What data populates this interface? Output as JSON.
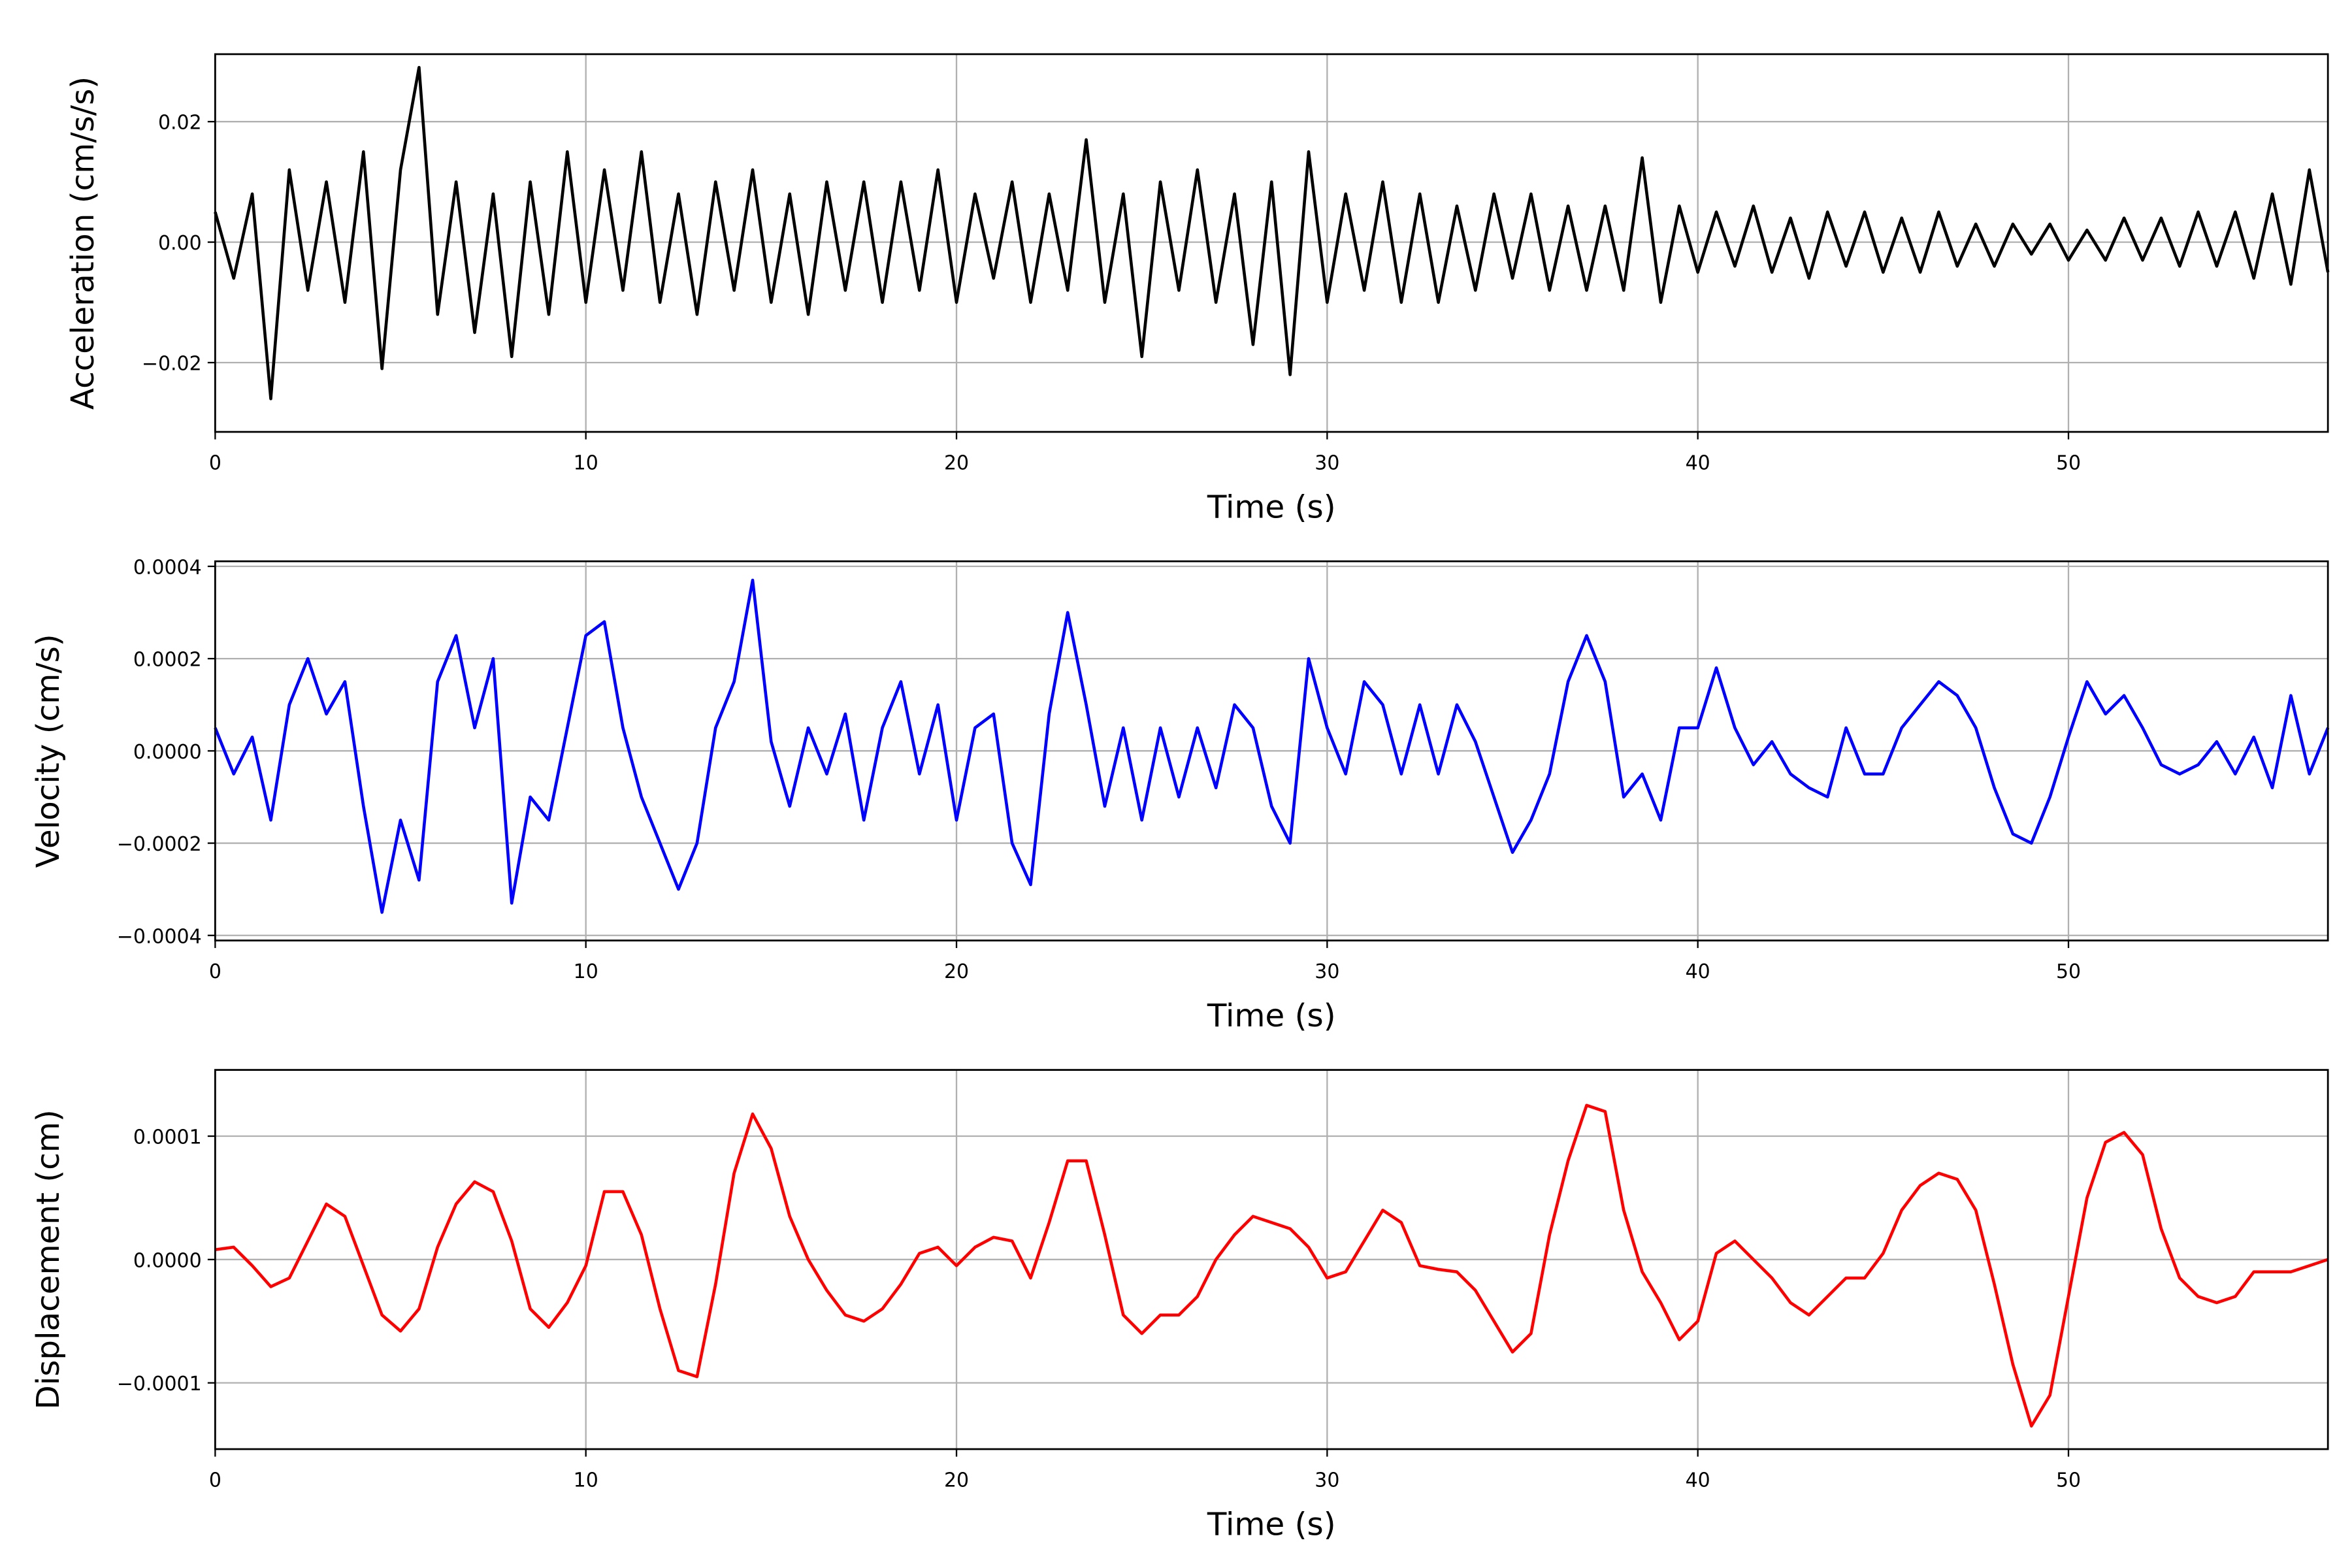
{
  "chart_data": [
    {
      "type": "line",
      "xlabel": "Time (s)",
      "ylabel": "Acceleration (cm/s/s)",
      "color": "#000000",
      "grid": true,
      "xlim": [
        0,
        57
      ],
      "ylim": [
        -0.0315,
        0.0312
      ],
      "xticks": [
        0,
        10,
        20,
        30,
        40,
        50
      ],
      "yticks": [
        {
          "value": -0.02,
          "label": "−0.02"
        },
        {
          "value": 0,
          "label": "0.00"
        },
        {
          "value": 0.02,
          "label": "0.02"
        }
      ],
      "x": [
        0,
        0.5,
        1,
        1.5,
        2,
        2.5,
        3,
        3.5,
        4,
        4.5,
        5,
        5.5,
        6,
        6.5,
        7,
        7.5,
        8,
        8.5,
        9,
        9.5,
        10,
        10.5,
        11,
        11.5,
        12,
        12.5,
        13,
        13.5,
        14,
        14.5,
        15,
        15.5,
        16,
        16.5,
        17,
        17.5,
        18,
        18.5,
        19,
        19.5,
        20,
        20.5,
        21,
        21.5,
        22,
        22.5,
        23,
        23.5,
        24,
        24.5,
        25,
        25.5,
        26,
        26.5,
        27,
        27.5,
        28,
        28.5,
        29,
        29.5,
        30,
        30.5,
        31,
        31.5,
        32,
        32.5,
        33,
        33.5,
        34,
        34.5,
        35,
        35.5,
        36,
        36.5,
        37,
        37.5,
        38,
        38.5,
        39,
        39.5,
        40,
        40.5,
        41,
        41.5,
        42,
        42.5,
        43,
        43.5,
        44,
        44.5,
        45,
        45.5,
        46,
        46.5,
        47,
        47.5,
        48,
        48.5,
        49,
        49.5,
        50,
        50.5,
        51,
        51.5,
        52,
        52.5,
        53,
        53.5,
        54,
        54.5,
        55,
        55.5,
        56,
        56.5,
        57
      ],
      "values": [
        0.005,
        -0.006,
        0.008,
        -0.026,
        0.012,
        -0.008,
        0.01,
        -0.01,
        0.015,
        -0.021,
        0.012,
        0.029,
        -0.012,
        0.01,
        -0.015,
        0.008,
        -0.019,
        0.01,
        -0.012,
        0.015,
        -0.01,
        0.012,
        -0.008,
        0.015,
        -0.01,
        0.008,
        -0.012,
        0.01,
        -0.008,
        0.012,
        -0.01,
        0.008,
        -0.012,
        0.01,
        -0.008,
        0.01,
        -0.01,
        0.01,
        -0.008,
        0.012,
        -0.01,
        0.008,
        -0.006,
        0.01,
        -0.01,
        0.008,
        -0.008,
        0.017,
        -0.01,
        0.008,
        -0.019,
        0.01,
        -0.008,
        0.012,
        -0.01,
        0.008,
        -0.017,
        0.01,
        -0.022,
        0.015,
        -0.01,
        0.008,
        -0.008,
        0.01,
        -0.01,
        0.008,
        -0.01,
        0.006,
        -0.008,
        0.008,
        -0.006,
        0.008,
        -0.008,
        0.006,
        -0.008,
        0.006,
        -0.008,
        0.014,
        -0.01,
        0.006,
        -0.005,
        0.005,
        -0.004,
        0.006,
        -0.005,
        0.004,
        -0.006,
        0.005,
        -0.004,
        0.005,
        -0.005,
        0.004,
        -0.005,
        0.005,
        -0.004,
        0.003,
        -0.004,
        0.003,
        -0.002,
        0.003,
        -0.003,
        0.002,
        -0.003,
        0.004,
        -0.003,
        0.004,
        -0.004,
        0.005,
        -0.004,
        0.005,
        -0.006,
        0.008,
        -0.007,
        0.012,
        -0.005
      ]
    },
    {
      "type": "line",
      "xlabel": "Time (s)",
      "ylabel": "Velocity (cm/s)",
      "color": "#0000ff",
      "grid": true,
      "xlim": [
        0,
        57
      ],
      "ylim": [
        -0.000411,
        0.000411
      ],
      "xticks": [
        0,
        10,
        20,
        30,
        40,
        50
      ],
      "yticks": [
        {
          "value": -0.0004,
          "label": "−0.0004"
        },
        {
          "value": -0.0002,
          "label": "−0.0002"
        },
        {
          "value": 0,
          "label": "0.0000"
        },
        {
          "value": 0.0002,
          "label": "0.0002"
        },
        {
          "value": 0.0004,
          "label": "0.0004"
        }
      ],
      "x": [
        0,
        0.5,
        1,
        1.5,
        2,
        2.5,
        3,
        3.5,
        4,
        4.5,
        5,
        5.5,
        6,
        6.5,
        7,
        7.5,
        8,
        8.5,
        9,
        9.5,
        10,
        10.5,
        11,
        11.5,
        12,
        12.5,
        13,
        13.5,
        14,
        14.5,
        15,
        15.5,
        16,
        16.5,
        17,
        17.5,
        18,
        18.5,
        19,
        19.5,
        20,
        20.5,
        21,
        21.5,
        22,
        22.5,
        23,
        23.5,
        24,
        24.5,
        25,
        25.5,
        26,
        26.5,
        27,
        27.5,
        28,
        28.5,
        29,
        29.5,
        30,
        30.5,
        31,
        31.5,
        32,
        32.5,
        33,
        33.5,
        34,
        34.5,
        35,
        35.5,
        36,
        36.5,
        37,
        37.5,
        38,
        38.5,
        39,
        39.5,
        40,
        40.5,
        41,
        41.5,
        42,
        42.5,
        43,
        43.5,
        44,
        44.5,
        45,
        45.5,
        46,
        46.5,
        47,
        47.5,
        48,
        48.5,
        49,
        49.5,
        50,
        50.5,
        51,
        51.5,
        52,
        52.5,
        53,
        53.5,
        54,
        54.5,
        55,
        55.5,
        56,
        56.5,
        57
      ],
      "values": [
        5e-05,
        -5e-05,
        3e-05,
        -0.00015,
        0.0001,
        0.0002,
        8e-05,
        0.00015,
        -0.00012,
        -0.00035,
        -0.00015,
        -0.00028,
        0.00015,
        0.00025,
        5e-05,
        0.0002,
        -0.00033,
        -0.0001,
        -0.00015,
        5e-05,
        0.00025,
        0.00028,
        5e-05,
        -0.0001,
        -0.0002,
        -0.0003,
        -0.0002,
        5e-05,
        0.00015,
        0.00037,
        2e-05,
        -0.00012,
        5e-05,
        -5e-05,
        8e-05,
        -0.00015,
        5e-05,
        0.00015,
        -5e-05,
        0.0001,
        -0.00015,
        5e-05,
        8e-05,
        -0.0002,
        -0.00029,
        8e-05,
        0.0003,
        0.0001,
        -0.00012,
        5e-05,
        -0.00015,
        5e-05,
        -0.0001,
        5e-05,
        -8e-05,
        0.0001,
        5e-05,
        -0.00012,
        -0.0002,
        0.0002,
        5e-05,
        -5e-05,
        0.00015,
        0.0001,
        -5e-05,
        0.0001,
        -5e-05,
        0.0001,
        2e-05,
        -0.0001,
        -0.00022,
        -0.00015,
        -5e-05,
        0.00015,
        0.00025,
        0.00015,
        -0.0001,
        -5e-05,
        -0.00015,
        5e-05,
        5e-05,
        0.00018,
        5e-05,
        -3e-05,
        2e-05,
        -5e-05,
        -8e-05,
        -0.0001,
        5e-05,
        -5e-05,
        -5e-05,
        5e-05,
        0.0001,
        0.00015,
        0.00012,
        5e-05,
        -8e-05,
        -0.00018,
        -0.0002,
        -0.0001,
        3e-05,
        0.00015,
        8e-05,
        0.00012,
        5e-05,
        -3e-05,
        -5e-05,
        -3e-05,
        2e-05,
        -5e-05,
        3e-05,
        -8e-05,
        0.00012,
        -5e-05,
        5e-05
      ]
    },
    {
      "type": "line",
      "xlabel": "Time (s)",
      "ylabel": "Displacement (cm)",
      "color": "#ff0000",
      "grid": true,
      "xlim": [
        0,
        57
      ],
      "ylim": [
        -0.0001537,
        0.0001537
      ],
      "xticks": [
        0,
        10,
        20,
        30,
        40,
        50
      ],
      "yticks": [
        {
          "value": -0.0001,
          "label": "−0.0001"
        },
        {
          "value": 0,
          "label": "0.0000"
        },
        {
          "value": 0.0001,
          "label": "0.0001"
        }
      ],
      "x": [
        0,
        0.5,
        1,
        1.5,
        2,
        2.5,
        3,
        3.5,
        4,
        4.5,
        5,
        5.5,
        6,
        6.5,
        7,
        7.5,
        8,
        8.5,
        9,
        9.5,
        10,
        10.5,
        11,
        11.5,
        12,
        12.5,
        13,
        13.5,
        14,
        14.5,
        15,
        15.5,
        16,
        16.5,
        17,
        17.5,
        18,
        18.5,
        19,
        19.5,
        20,
        20.5,
        21,
        21.5,
        22,
        22.5,
        23,
        23.5,
        24,
        24.5,
        25,
        25.5,
        26,
        26.5,
        27,
        27.5,
        28,
        28.5,
        29,
        29.5,
        30,
        30.5,
        31,
        31.5,
        32,
        32.5,
        33,
        33.5,
        34,
        34.5,
        35,
        35.5,
        36,
        36.5,
        37,
        37.5,
        38,
        38.5,
        39,
        39.5,
        40,
        40.5,
        41,
        41.5,
        42,
        42.5,
        43,
        43.5,
        44,
        44.5,
        45,
        45.5,
        46,
        46.5,
        47,
        47.5,
        48,
        48.5,
        49,
        49.5,
        50,
        50.5,
        51,
        51.5,
        52,
        52.5,
        53,
        53.5,
        54,
        54.5,
        55,
        55.5,
        56,
        56.5,
        57
      ],
      "values": [
        8e-06,
        1e-05,
        -5e-06,
        -2.2e-05,
        -1.5e-05,
        1.5e-05,
        4.5e-05,
        3.5e-05,
        -5e-06,
        -4.5e-05,
        -5.8e-05,
        -4e-05,
        1e-05,
        4.5e-05,
        6.3e-05,
        5.5e-05,
        1.5e-05,
        -4e-05,
        -5.5e-05,
        -3.5e-05,
        -5e-06,
        5.5e-05,
        5.5e-05,
        2e-05,
        -4e-05,
        -9e-05,
        -9.5e-05,
        -2e-05,
        7e-05,
        0.000118,
        9e-05,
        3.5e-05,
        0,
        -2.5e-05,
        -4.5e-05,
        -5e-05,
        -4e-05,
        -2e-05,
        5e-06,
        1e-05,
        -5e-06,
        1e-05,
        1.8e-05,
        1.5e-05,
        -1.5e-05,
        3e-05,
        8e-05,
        8e-05,
        2e-05,
        -4.5e-05,
        -6e-05,
        -4.5e-05,
        -4.5e-05,
        -3e-05,
        0,
        2e-05,
        3.5e-05,
        3e-05,
        2.5e-05,
        1e-05,
        -1.5e-05,
        -1e-05,
        1.5e-05,
        4e-05,
        3e-05,
        -5e-06,
        -8e-06,
        -1e-05,
        -2.5e-05,
        -5e-05,
        -7.5e-05,
        -6e-05,
        2e-05,
        8e-05,
        0.000125,
        0.00012,
        4e-05,
        -1e-05,
        -3.5e-05,
        -6.5e-05,
        -5e-05,
        5e-06,
        1.5e-05,
        0,
        -1.5e-05,
        -3.5e-05,
        -4.5e-05,
        -3e-05,
        -1.5e-05,
        -1.5e-05,
        5e-06,
        4e-05,
        6e-05,
        7e-05,
        6.5e-05,
        4e-05,
        -2e-05,
        -8.5e-05,
        -0.000135,
        -0.00011,
        -3e-05,
        5e-05,
        9.5e-05,
        0.000103,
        8.5e-05,
        2.5e-05,
        -1.5e-05,
        -3e-05,
        -3.5e-05,
        -3e-05,
        -1e-05,
        -1e-05,
        -1e-05,
        -5e-06,
        0
      ]
    }
  ]
}
